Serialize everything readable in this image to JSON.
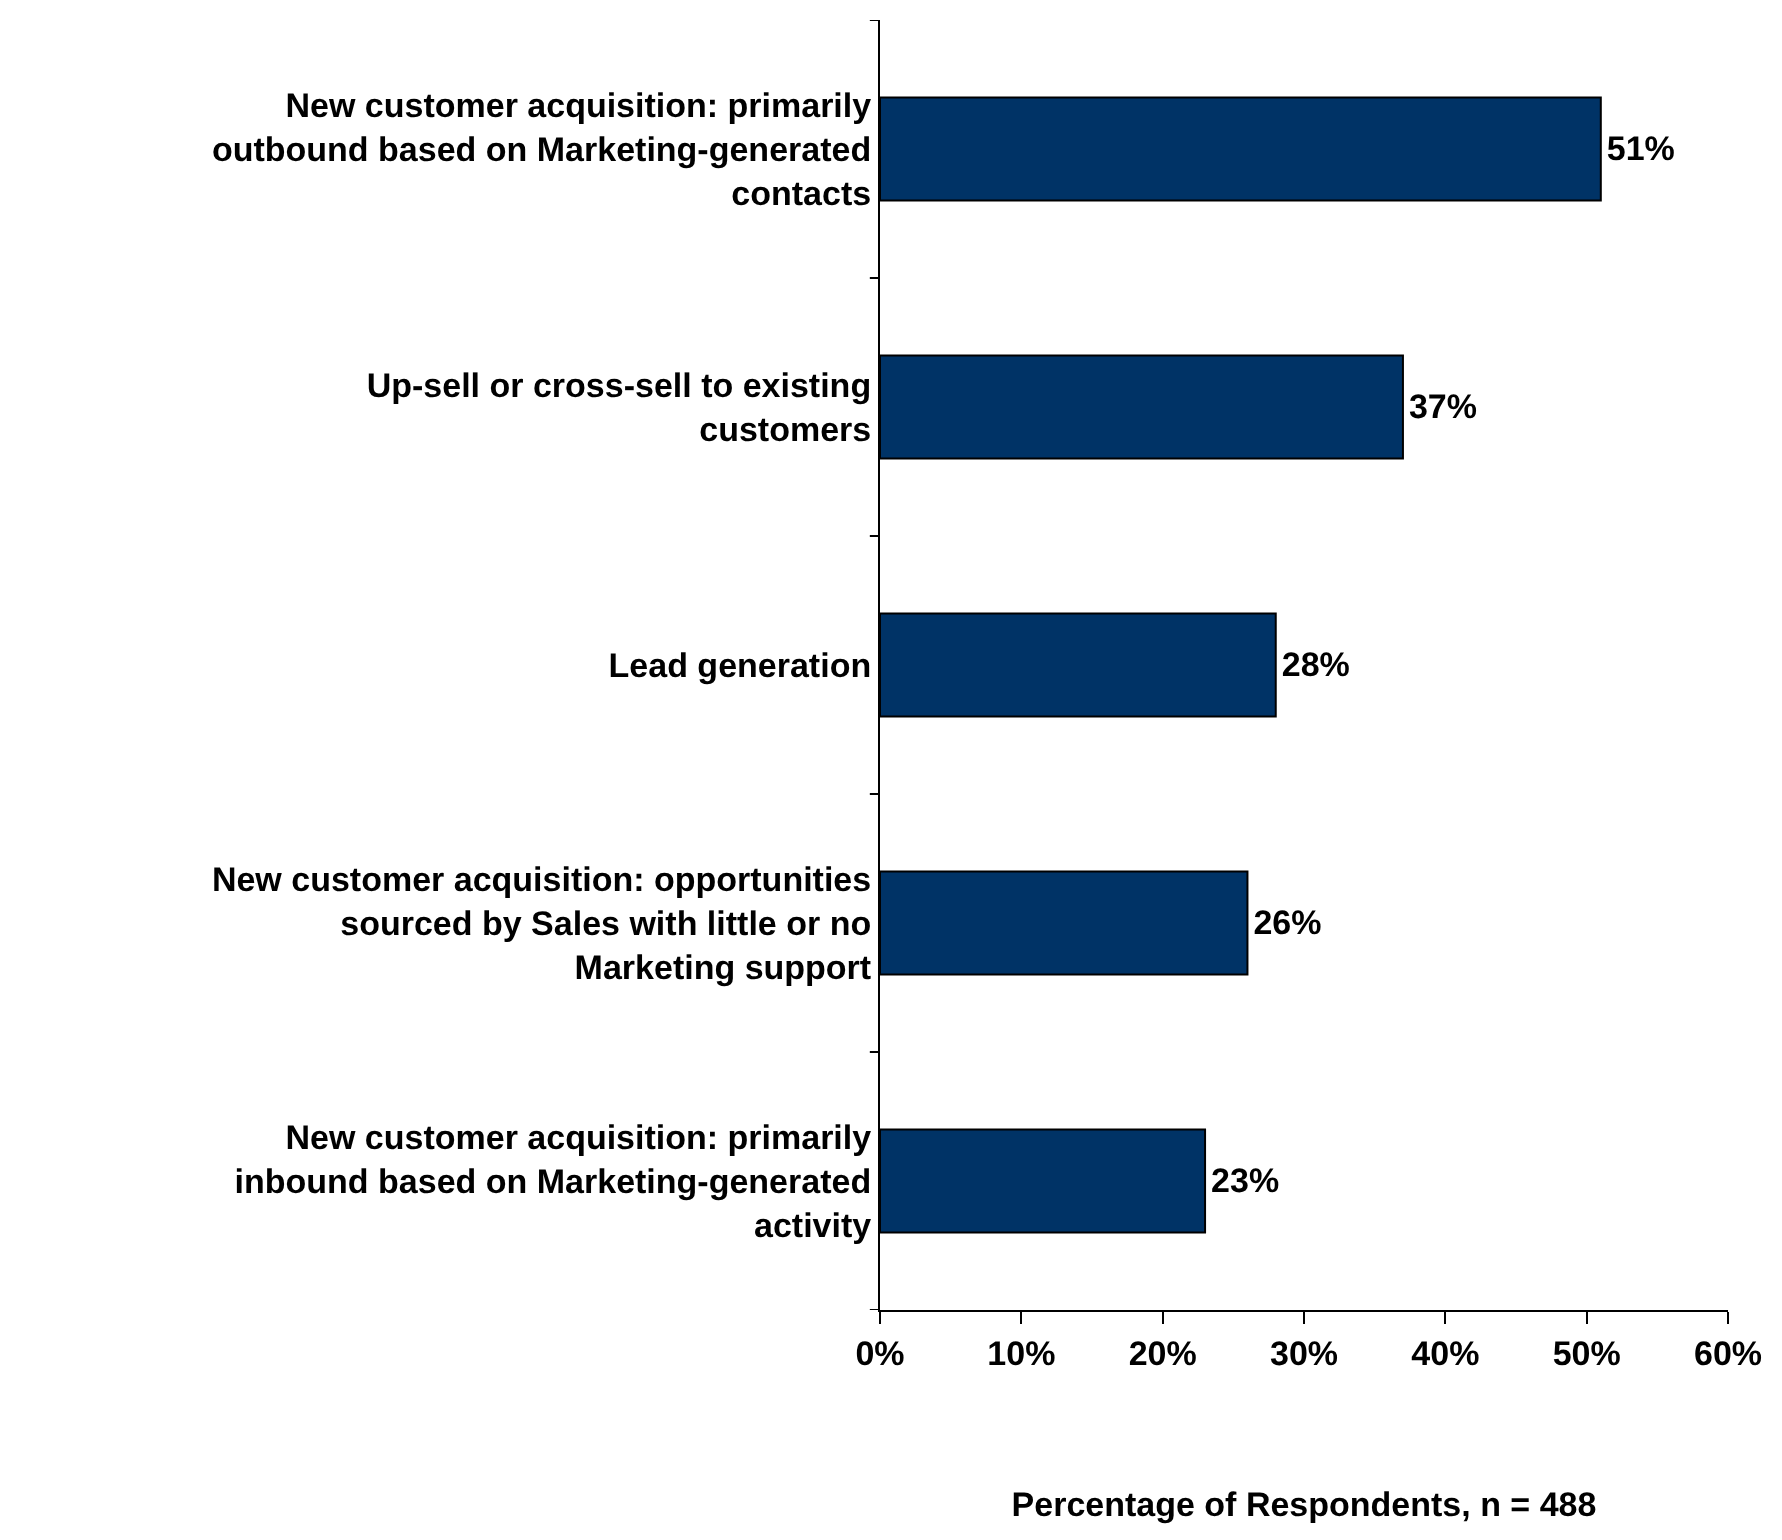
{
  "chart_data": {
    "type": "bar",
    "orientation": "horizontal",
    "xlabel": "Percentage of Respondents, n = 488",
    "categories": [
      "New customer acquisition: primarily outbound based on Marketing-generated contacts",
      "Up-sell or cross-sell to existing customers",
      "Lead generation",
      "New customer acquisition: opportunities sourced by Sales with little or no Marketing support",
      "New customer acquisition: primarily inbound based on Marketing-generated activity"
    ],
    "values": [
      51,
      37,
      28,
      26,
      23
    ],
    "value_labels": [
      "51%",
      "37%",
      "28%",
      "26%",
      "23%"
    ],
    "color": "#003366",
    "xlim": [
      0,
      60
    ],
    "xticks": [
      {
        "value": 0,
        "label": "0%"
      },
      {
        "value": 10,
        "label": "10%"
      },
      {
        "value": 20,
        "label": "20%"
      },
      {
        "value": 30,
        "label": "30%"
      },
      {
        "value": 40,
        "label": "40%"
      },
      {
        "value": 50,
        "label": "50%"
      },
      {
        "value": 60,
        "label": "60%"
      }
    ],
    "legend": false
  }
}
